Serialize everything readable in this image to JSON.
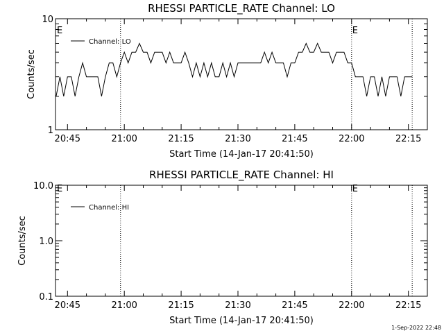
{
  "footer": {
    "timestamp": "1-Sep-2022 22:48"
  },
  "chart_data": [
    {
      "type": "line",
      "title": "RHESSI PARTICLE_RATE Channel: LO",
      "xlabel": "Start Time (14-Jan-17 20:41:50)",
      "ylabel": "Counts/sec",
      "y_scale": "log",
      "ylim": [
        1,
        10
      ],
      "y_ticks": [
        "10",
        "1"
      ],
      "xlim": [
        "20:41:50",
        "22:20:00"
      ],
      "x_ticks": [
        "20:45",
        "21:00",
        "21:15",
        "21:30",
        "21:45",
        "22:00",
        "22:15"
      ],
      "legend": {
        "label": "Channel: LO",
        "placement": "top-left"
      },
      "event_lines": [
        {
          "time": "20:59",
          "label": ""
        },
        {
          "time": "22:00",
          "label": "E"
        },
        {
          "time": "22:16",
          "label": ""
        }
      ],
      "left_marker": "E",
      "series": [
        {
          "name": "Channel: LO",
          "x": [
            "20:42",
            "20:43",
            "20:44",
            "20:45",
            "20:46",
            "20:47",
            "20:48",
            "20:49",
            "20:50",
            "20:51",
            "20:52",
            "20:53",
            "20:54",
            "20:55",
            "20:56",
            "20:57",
            "20:58",
            "20:59",
            "21:00",
            "21:01",
            "21:02",
            "21:03",
            "21:04",
            "21:05",
            "21:06",
            "21:07",
            "21:08",
            "21:09",
            "21:10",
            "21:11",
            "21:12",
            "21:13",
            "21:14",
            "21:15",
            "21:16",
            "21:17",
            "21:18",
            "21:19",
            "21:20",
            "21:21",
            "21:22",
            "21:23",
            "21:24",
            "21:25",
            "21:26",
            "21:27",
            "21:28",
            "21:29",
            "21:30",
            "21:31",
            "21:32",
            "21:33",
            "21:34",
            "21:35",
            "21:36",
            "21:37",
            "21:38",
            "21:39",
            "21:40",
            "21:41",
            "21:42",
            "21:43",
            "21:44",
            "21:45",
            "21:46",
            "21:47",
            "21:48",
            "21:49",
            "21:50",
            "21:51",
            "21:52",
            "21:53",
            "21:54",
            "21:55",
            "21:56",
            "21:57",
            "21:58",
            "21:59",
            "22:00",
            "22:01",
            "22:02",
            "22:03",
            "22:04",
            "22:05",
            "22:06",
            "22:07",
            "22:08",
            "22:09",
            "22:10",
            "22:11",
            "22:12",
            "22:13",
            "22:14",
            "22:15",
            "22:16"
          ],
          "values": [
            2,
            3,
            2,
            3,
            3,
            2,
            3,
            4,
            3,
            3,
            3,
            3,
            2,
            3,
            4,
            4,
            3,
            4,
            5,
            4,
            5,
            5,
            6,
            5,
            5,
            4,
            5,
            5,
            5,
            4,
            5,
            4,
            4,
            4,
            5,
            4,
            3,
            4,
            3,
            4,
            3,
            4,
            3,
            3,
            4,
            3,
            4,
            3,
            4,
            4,
            4,
            4,
            4,
            4,
            4,
            5,
            4,
            5,
            4,
            4,
            4,
            3,
            4,
            4,
            5,
            5,
            6,
            5,
            5,
            6,
            5,
            5,
            5,
            4,
            5,
            5,
            5,
            4,
            4,
            3,
            3,
            3,
            2,
            3,
            3,
            2,
            3,
            2,
            3,
            3,
            3,
            2,
            3,
            3,
            3
          ]
        }
      ]
    },
    {
      "type": "line",
      "title": "RHESSI PARTICLE_RATE Channel: HI",
      "xlabel": "Start Time (14-Jan-17 20:41:50)",
      "ylabel": "Counts/sec",
      "y_scale": "log",
      "ylim": [
        0.1,
        10
      ],
      "y_ticks": [
        "10.0",
        "1.0",
        "0.1"
      ],
      "xlim": [
        "20:41:50",
        "22:20:00"
      ],
      "x_ticks": [
        "20:45",
        "21:00",
        "21:15",
        "21:30",
        "21:45",
        "22:00",
        "22:15"
      ],
      "legend": {
        "label": "Channel: HI",
        "placement": "top-left"
      },
      "event_lines": [
        {
          "time": "20:59",
          "label": ""
        },
        {
          "time": "22:00",
          "label": "E"
        },
        {
          "time": "22:16",
          "label": ""
        }
      ],
      "left_marker": "E",
      "series": [
        {
          "name": "Channel: HI",
          "x": [],
          "values": []
        }
      ]
    }
  ]
}
